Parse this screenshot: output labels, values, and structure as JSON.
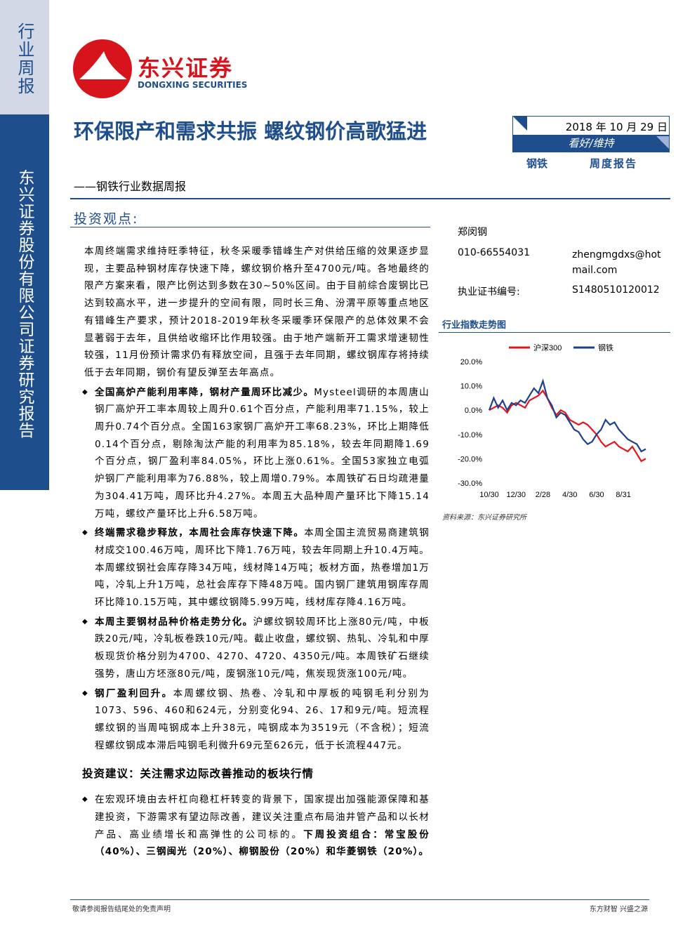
{
  "sidebar": {
    "report_kind": "行业周报",
    "company_line": "东兴证券股份有限公司证券研究报告"
  },
  "header": {
    "logo_name": "东兴证券",
    "logo_english": "DONGXING SECURITIES",
    "title": "环保限产和需求共振 螺纹钢价高歌猛进",
    "subtitle": "——钢铁行业数据周报",
    "date": "2018 年 10 月 29 日",
    "rating": "看好/维持",
    "sector": "钢铁",
    "report_type": "周度报告"
  },
  "author": {
    "name": "郑闵钢",
    "phone": "010-66554031",
    "email": "zhengmgdxs@hotmail.com",
    "license_label": "执业证书编号:",
    "license": "S1480510120012"
  },
  "section_title": "投资观点:",
  "intro": "本周终端需求维持旺季特征，秋冬采暖季错峰生产对供给压缩的效果逐步显现，主要品种钢材库存快速下降，螺纹钢价格升至4700元/吨。各地最终的限产方案来看，限产比例达到多数在30~50%区间。由于目前综合废钢比已达到较高水平，进一步提升的空间有限，同时长三角、汾渭平原等重点地区有错峰生产要求，预计2018-2019年秋冬采暖季环保限产的总体效果不会显著弱于去年，且供给收缩环比作用较强。由于地产端新开工需求增速韧性较强，11月份预计需求仍有释放空间，且强于去年同期，螺纹钢库存将持续低于去年同期，钢价有望反弹至去年高点。",
  "bullets": [
    {
      "lead": "全国高炉产能利用率降，钢材产量周环比减少。",
      "text": "Mysteel调研的本周唐山钢厂高炉开工率本周较上周升0.61个百分点，产能利用率71.15%，较上周升0.74个百分点。全国163家钢厂高炉开工率68.23%，环比上期降低0.14个百分点，剔除淘汰产能的利用率为85.18%，较去年同期降1.69个百分点，钢厂盈利率84.05%，环比上涨0.61%。全国53家独立电弧炉钢厂产能利用率为76.88%，较上周增0.79%。本周铁矿石日均疏港量为304.41万吨，周环比升4.27%。本周五大品种周产量环比下降15.14万吨，螺纹产量环比上升6.58万吨。"
    },
    {
      "lead": "终端需求稳步释放，本周社会库存快速下降。",
      "text": "本周全国主流贸易商建筑钢材成交100.46万吨，周环比下降1.76万吨，较去年同期上升10.4万吨。本周螺纹钢社会库存降34万吨，线材降14万吨；板材方面，热卷增加1万吨，冷轧上升1万吨，总社会库存下降48万吨。国内钢厂建筑用钢库存周环比降10.15万吨，其中螺纹钢降5.99万吨，线材库存降4.16万吨。"
    },
    {
      "lead": "本周主要钢材品种价格走势分化。",
      "text": "沪螺纹钢较周环比上涨80元/吨，中板跌20元/吨，冷轧板卷跌10元/吨。截止收盘，螺纹钢、热轧、冷轧和中厚板现货价格分别为4700、4270、4720、4350元/吨。本周铁矿石继续强势，唐山方坯涨80元/吨，废钢涨10元/吨，焦炭现货涨100元/吨。"
    },
    {
      "lead": "钢厂盈利回升。",
      "text": "本周螺纹钢、热卷、冷轧和中厚板的吨钢毛利分别为1073、596、460和624元，分别变化94、26、17和9元/吨。短流程螺纹钢的当周吨钢成本上升38元，吨钢成本为3519元（不含税）；短流程螺纹钢成本滞后吨钢毛利微升69元至626元，低于长流程447元。"
    }
  ],
  "advice": {
    "title": "投资建议：关注需求边际改善推动的板块行情",
    "text": "在宏观环境由去杆杠向稳杠杆转变的背景下，国家提出加强能源保障和基建投资，下游需求有望边际改善，建议关注重点布局油井管产品和以长材产品、高业绩增长和高弹性的公司标的。",
    "bold": "下周投资组合：常宝股份（40%）、三钢闽光（20%）、柳钢股份（20%）和华菱钢铁（20%）。"
  },
  "footer": {
    "left": "敬请参阅报告结尾处的免责声明",
    "right": "东方财智 兴盛之源"
  },
  "chart_data": {
    "type": "line",
    "title": "行业指数走势图",
    "source": "资料来源：东兴证券研究所",
    "categories": [
      "10/30",
      null,
      null,
      null,
      null,
      null,
      "12/30",
      null,
      null,
      null,
      null,
      null,
      "2/28",
      null,
      null,
      null,
      null,
      null,
      "4/30",
      null,
      null,
      null,
      null,
      null,
      "6/30",
      null,
      null,
      null,
      null,
      null,
      "8/31",
      null,
      null,
      null,
      null,
      null
    ],
    "series": [
      {
        "name": "沪深300",
        "color": "#e8141c",
        "values": [
          0,
          1,
          2,
          1,
          -1,
          2,
          3,
          2,
          1,
          4,
          5,
          6,
          8,
          5,
          1,
          -2,
          0,
          -1,
          -4,
          -5,
          -6,
          -5,
          -6,
          -8,
          -10,
          -13,
          -15,
          -14,
          -13,
          -15,
          -16,
          -17,
          -15,
          -18,
          -21,
          -20
        ]
      },
      {
        "name": "钢铁",
        "color": "#1f3f8f",
        "values": [
          0,
          5,
          1,
          4,
          0,
          3,
          2,
          4,
          3,
          6,
          9,
          7,
          12,
          5,
          2,
          -3,
          -1,
          -2,
          -5,
          -8,
          -9,
          -12,
          -14,
          -13,
          -10,
          -8,
          -4,
          -6,
          -5,
          -8,
          -10,
          -12,
          -13,
          -14,
          -17,
          -16
        ]
      }
    ],
    "ylim": [
      -30,
      20
    ],
    "yticks": [
      {
        "value": -30,
        "label": "-30.0%"
      },
      {
        "value": -20,
        "label": "-20.0%"
      },
      {
        "value": -10,
        "label": "-10.0%"
      },
      {
        "value": 0,
        "label": "0.0%"
      },
      {
        "value": 10,
        "label": "10.0%"
      },
      {
        "value": 20,
        "label": "20.0%"
      }
    ],
    "legend": "top"
  }
}
